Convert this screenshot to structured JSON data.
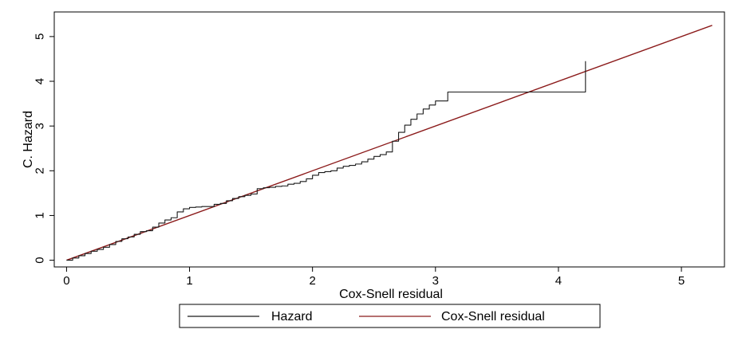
{
  "chart_data": {
    "type": "line",
    "xlabel": "Cox-Snell residual",
    "ylabel": "C. Hazard",
    "xlim": [
      -0.1,
      5.35
    ],
    "ylim": [
      -0.15,
      5.55
    ],
    "xticks": [
      0,
      1,
      2,
      3,
      4,
      5
    ],
    "yticks": [
      0,
      1,
      2,
      3,
      4,
      5
    ],
    "grid": false,
    "legend_position": "bottom",
    "series": [
      {
        "name": "Hazard",
        "color": "#1a1a1a",
        "style": "step",
        "x": [
          0,
          0.05,
          0.1,
          0.15,
          0.2,
          0.25,
          0.3,
          0.35,
          0.4,
          0.45,
          0.5,
          0.55,
          0.6,
          0.65,
          0.7,
          0.75,
          0.8,
          0.85,
          0.9,
          0.95,
          1.0,
          1.05,
          1.1,
          1.15,
          1.2,
          1.25,
          1.3,
          1.35,
          1.4,
          1.45,
          1.5,
          1.55,
          1.6,
          1.65,
          1.7,
          1.75,
          1.8,
          1.85,
          1.9,
          1.95,
          2.0,
          2.05,
          2.1,
          2.15,
          2.2,
          2.25,
          2.3,
          2.35,
          2.4,
          2.45,
          2.5,
          2.55,
          2.6,
          2.65,
          2.7,
          2.75,
          2.8,
          2.85,
          2.9,
          2.95,
          3.0,
          3.1,
          4.22
        ],
        "y": [
          0,
          0.05,
          0.1,
          0.15,
          0.2,
          0.24,
          0.29,
          0.35,
          0.42,
          0.48,
          0.52,
          0.58,
          0.64,
          0.66,
          0.74,
          0.83,
          0.9,
          0.95,
          1.08,
          1.15,
          1.18,
          1.19,
          1.2,
          1.2,
          1.25,
          1.27,
          1.33,
          1.38,
          1.42,
          1.45,
          1.48,
          1.6,
          1.62,
          1.63,
          1.65,
          1.66,
          1.7,
          1.72,
          1.76,
          1.82,
          1.9,
          1.96,
          1.98,
          2.0,
          2.06,
          2.1,
          2.12,
          2.15,
          2.2,
          2.26,
          2.32,
          2.36,
          2.42,
          2.66,
          2.86,
          3.02,
          3.15,
          3.27,
          3.38,
          3.47,
          3.56,
          3.76,
          4.45
        ]
      },
      {
        "name": "Cox-Snell residual",
        "color": "#8b1a1a",
        "style": "line",
        "x": [
          0,
          5.25
        ],
        "y": [
          0,
          5.25
        ]
      }
    ]
  }
}
